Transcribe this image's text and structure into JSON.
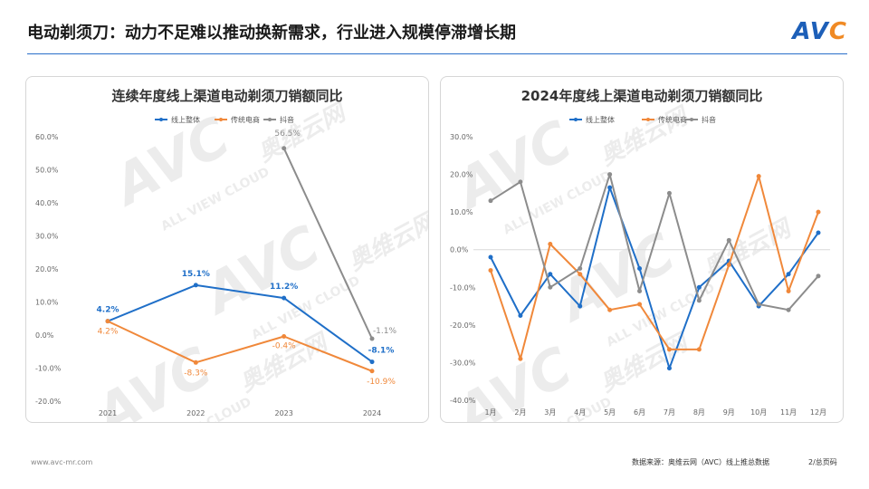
{
  "header": {
    "title": "电动剃须刀：动力不足难以推动换新需求，行业进入规模停滞增长期",
    "logo_text": "AV",
    "logo_dot": "C"
  },
  "watermark": {
    "text": "AVC",
    "brand": "奥维云网",
    "sub": "ALL VIEW CLOUD"
  },
  "colors": {
    "online_total": "#1f6fc8",
    "traditional_ecom": "#f0883a",
    "douyin": "#8c8c8c"
  },
  "chart_data": [
    {
      "type": "line",
      "title": "连续年度线上渠道电动剃须刀销额同比",
      "categories": [
        "2021",
        "2022",
        "2023",
        "2024"
      ],
      "yticks": [
        "60.0%",
        "50.0%",
        "40.0%",
        "30.0%",
        "20.0%",
        "10.0%",
        "0.0%",
        "-10.0%",
        "-20.0%"
      ],
      "ylim": [
        -20,
        60
      ],
      "series": [
        {
          "name": "线上整体",
          "values": [
            4.2,
            15.1,
            11.2,
            -8.1
          ],
          "labels": [
            "4.2%",
            "15.1%",
            "11.2%",
            "-8.1%"
          ]
        },
        {
          "name": "传统电商",
          "values": [
            4.2,
            -8.3,
            -0.4,
            -10.9
          ],
          "labels": [
            "4.2%",
            "-8.3%",
            "-0.4%",
            "-10.9%"
          ]
        },
        {
          "name": "抖音",
          "values": [
            null,
            null,
            56.5,
            -1.1
          ],
          "labels": [
            "",
            "",
            "56.5%",
            "-1.1%"
          ]
        }
      ]
    },
    {
      "type": "line",
      "title": "2024年度线上渠道电动剃须刀销额同比",
      "categories": [
        "1月",
        "2月",
        "3月",
        "4月",
        "5月",
        "6月",
        "7月",
        "8月",
        "9月",
        "10月",
        "11月",
        "12月"
      ],
      "yticks": [
        "30.0%",
        "20.0%",
        "10.0%",
        "0.0%",
        "-10.0%",
        "-20.0%",
        "-30.0%",
        "-40.0%"
      ],
      "ylim": [
        -40,
        30
      ],
      "series": [
        {
          "name": "线上整体",
          "values": [
            -2.0,
            -17.5,
            -6.5,
            -15.0,
            16.5,
            -5.0,
            -31.5,
            -10.0,
            -3.0,
            -15.0,
            -6.5,
            4.5
          ]
        },
        {
          "name": "传统电商",
          "values": [
            -5.5,
            -29.0,
            1.5,
            -6.5,
            -16.0,
            -14.5,
            -26.5,
            -26.5,
            -4.0,
            19.5,
            -11.0,
            10.0
          ]
        },
        {
          "name": "抖音",
          "values": [
            13.0,
            18.0,
            -10.0,
            -5.0,
            20.0,
            -11.0,
            15.0,
            -13.5,
            2.5,
            -14.5,
            -16.0,
            -7.0
          ]
        }
      ]
    }
  ],
  "footer": {
    "website": "www.avc-mr.com",
    "source": "数据来源：奥维云网（AVC）线上推总数据",
    "page": "2/总页码"
  }
}
